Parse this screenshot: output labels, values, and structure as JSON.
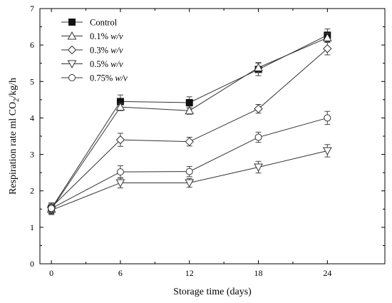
{
  "chart_data": {
    "type": "line",
    "title": "",
    "xlabel": "Storage time (days)",
    "ylabel": "Respiration rate ml CO₂/kg/h",
    "ylabel_parts": {
      "main": "Respiration rate ml CO",
      "sub": "2",
      "tail": "/kg/h"
    },
    "x": [
      0,
      6,
      12,
      18,
      24
    ],
    "x_ticks": [
      "0",
      "6",
      "12",
      "18",
      "24"
    ],
    "y_ticks": [
      "0",
      "1",
      "2",
      "3",
      "4",
      "5",
      "6",
      "7"
    ],
    "xlim": [
      -1,
      29
    ],
    "ylim": [
      0,
      7
    ],
    "grid": false,
    "legend_position": "top-left",
    "series": [
      {
        "name": "Control",
        "name_main": "Control",
        "name_unit": "",
        "marker": "square-filled",
        "values": [
          1.52,
          4.45,
          4.42,
          5.33,
          6.27
        ],
        "errors": [
          0.15,
          0.18,
          0.16,
          0.17,
          0.17
        ]
      },
      {
        "name": "0.1% w/v",
        "name_main": "0.1%",
        "name_unit": "w/v",
        "marker": "triangle-up",
        "values": [
          1.5,
          4.3,
          4.2,
          5.38,
          6.2
        ],
        "errors": [
          0.12,
          0.1,
          0.1,
          0.14,
          0.12
        ]
      },
      {
        "name": "0.3% w/v",
        "name_main": "0.3%",
        "name_unit": "w/v",
        "marker": "diamond",
        "values": [
          1.55,
          3.4,
          3.35,
          4.25,
          5.9
        ],
        "errors": [
          0.12,
          0.18,
          0.12,
          0.12,
          0.17
        ]
      },
      {
        "name": "0.5% w/v",
        "name_main": "0.5%",
        "name_unit": "w/v",
        "marker": "triangle-down",
        "values": [
          1.47,
          2.22,
          2.22,
          2.65,
          3.1
        ],
        "errors": [
          0.12,
          0.14,
          0.12,
          0.16,
          0.17
        ]
      },
      {
        "name": "0.75% w/v",
        "name_main": "0.75%",
        "name_unit": "w/v",
        "marker": "circle",
        "values": [
          1.52,
          2.52,
          2.53,
          3.47,
          4.0
        ],
        "errors": [
          0.12,
          0.17,
          0.14,
          0.14,
          0.18
        ]
      }
    ]
  }
}
